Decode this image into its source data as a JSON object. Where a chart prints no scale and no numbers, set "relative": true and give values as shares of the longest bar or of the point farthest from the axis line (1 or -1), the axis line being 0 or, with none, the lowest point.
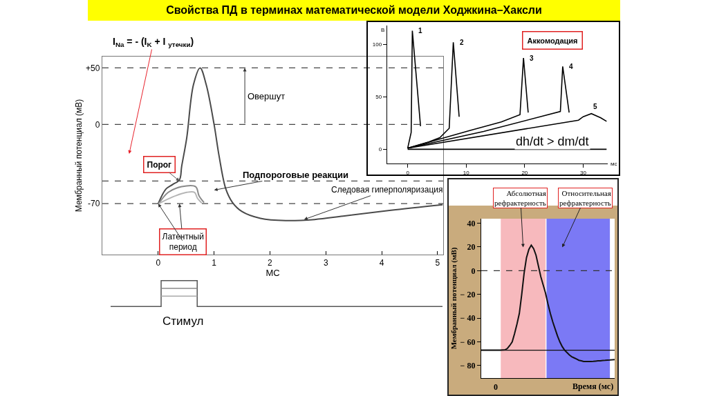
{
  "chart_data": [
    {
      "type": "line",
      "title": "Свойства ПД в терминах математической модели Ходжкина–Хаксли",
      "xlabel": "МС",
      "ylabel": "Мембранный потенциал (мВ)",
      "xlim": [
        -1,
        5.1
      ],
      "ylim": [
        -115,
        60
      ],
      "xticks": [
        0,
        1,
        2,
        3,
        4,
        5
      ],
      "yticks": [
        {
          "value": 50,
          "label": "+50"
        },
        0,
        -70
      ],
      "series": [
        {
          "color": "#4a4a4a",
          "x": [
            0,
            0.14,
            0.26,
            0.38,
            0.42,
            0.51,
            0.63,
            0.75,
            0.86,
            1.0,
            1.09,
            1.21,
            1.33,
            1.5,
            1.83,
            2.28,
            2.8,
            3.31,
            4.14,
            5.09
          ],
          "values": [
            -70,
            -57,
            -53,
            -49,
            -37,
            -12,
            35,
            50,
            35,
            0,
            -28,
            -57,
            -69,
            -77,
            -83,
            -85,
            -84,
            -81,
            -76,
            -71
          ]
        },
        {
          "color": "#8a8a8a",
          "x": [
            0.01,
            0.18,
            0.42,
            0.67,
            0.73,
            0.82
          ],
          "values": [
            -70,
            -60,
            -55,
            -55,
            -63,
            -69
          ]
        },
        {
          "color": "#b5b5b5",
          "x": [
            0.01,
            0.26,
            0.51,
            0.65,
            0.7,
            0.78
          ],
          "values": [
            -70,
            -64,
            -60,
            -60,
            -65,
            -69.5
          ]
        }
      ],
      "ref_lines": [
        {
          "axis": "y",
          "value": 50,
          "color": "#444444",
          "line_style": "dashed"
        },
        {
          "axis": "y",
          "value": 0,
          "color": "#444444",
          "line_style": "dashed"
        },
        {
          "axis": "y",
          "value": -50,
          "color": "#444444",
          "line_style": "dashed"
        },
        {
          "axis": "y",
          "value": -70,
          "color": "#444444",
          "line_style": "dashed"
        }
      ],
      "annotations": [
        "I$_{Na}$ = - (I$_{K}$ + I $_{утечки}$)",
        {
          "text": "Порог",
          "x": 0.38,
          "y": -50
        },
        "Овершут",
        "Подпороговые реакции",
        {
          "text": "Следовая гиперполяризация",
          "x": 2.61,
          "y": -84
        },
        {
          "text": "Латентный\nпериод",
          "x": 0.38,
          "y": -70
        }
      ]
    },
    {
      "type": "step",
      "relative": true,
      "xlabel": "Стимул",
      "categories": [
        null,
        null,
        null,
        null,
        null,
        null,
        null,
        null,
        null,
        null,
        null,
        null,
        null,
        null,
        null,
        null,
        null,
        null,
        null,
        null,
        null,
        null,
        null,
        null,
        null,
        null,
        null,
        null,
        null,
        null,
        null,
        null,
        null,
        null,
        null,
        null,
        null,
        null,
        null,
        null,
        null,
        null,
        null,
        null,
        null,
        null,
        null
      ],
      "series": [
        {
          "color": "#555555",
          "values": [
            0,
            0,
            0,
            0,
            0,
            0,
            0,
            1,
            1,
            1,
            1,
            1,
            0,
            0,
            0,
            0,
            0,
            0,
            0,
            0,
            0,
            0,
            0,
            0,
            0,
            0,
            0,
            0,
            0,
            0,
            0,
            0,
            0,
            0,
            0,
            0,
            0,
            0,
            0,
            0,
            0,
            0,
            0,
            0,
            0,
            0,
            0
          ]
        },
        {
          "color": "#888888",
          "values": [
            null,
            null,
            null,
            null,
            null,
            null,
            null,
            0.7,
            0.7,
            0.7,
            0.7,
            0.7,
            0.7,
            null,
            null,
            null,
            null,
            null,
            null,
            null,
            null,
            null,
            null,
            null,
            null,
            null,
            null,
            null,
            null,
            null,
            null,
            null,
            null,
            null,
            null,
            null,
            null,
            null,
            null,
            null,
            null,
            null,
            null,
            null,
            null,
            null,
            null
          ]
        },
        {
          "color": "#aaaaaa",
          "values": [
            null,
            null,
            null,
            null,
            null,
            null,
            null,
            0.4,
            0.4,
            0.4,
            0.4,
            0.4,
            0.4,
            null,
            null,
            null,
            null,
            null,
            null,
            null,
            null,
            null,
            null,
            null,
            null,
            null,
            null,
            null,
            null,
            null,
            null,
            null,
            null,
            null,
            null,
            null,
            null,
            null,
            null,
            null,
            null,
            null,
            null,
            null,
            null,
            null,
            null
          ]
        }
      ]
    },
    {
      "type": "line",
      "xlabel": "мс",
      "ylabel": "В",
      "xlim": [
        -3.5,
        34.2
      ],
      "ylim": [
        -13.6,
        118
      ],
      "xticks": [
        0,
        10,
        20,
        30
      ],
      "yticks": [
        0,
        50,
        100
      ],
      "series": [
        {
          "color": "#000000",
          "x": [
            0,
            34
          ],
          "values": [
            0,
            0
          ]
        },
        {
          "color": "#000000",
          "x": [
            0,
            0.6,
            0.8,
            2.2
          ],
          "values": [
            1,
            16,
            113,
            22
          ]
        },
        {
          "color": "#000000",
          "x": [
            0,
            3.6,
            5.5,
            7.1,
            7.8,
            8.8
          ],
          "values": [
            1,
            7,
            11,
            20,
            102,
            31
          ]
        },
        {
          "color": "#000000",
          "x": [
            0,
            10.7,
            16,
            19.2,
            19.8,
            20.6
          ],
          "values": [
            1,
            18,
            26,
            33,
            87,
            35
          ]
        },
        {
          "color": "#000000",
          "x": [
            0,
            13,
            26.1,
            26.5,
            27.6
          ],
          "values": [
            1,
            17,
            36,
            79,
            35
          ]
        },
        {
          "color": "#000000",
          "x": [
            0,
            29.2,
            30,
            31.4,
            33,
            34
          ],
          "values": [
            1,
            27.7,
            31,
            34,
            30,
            26.6
          ]
        }
      ],
      "annotations": [
        "Аккомодация",
        "dh/dt > dm/dt",
        {
          "text": "1",
          "x": 0.8,
          "y": 113
        },
        {
          "text": "2",
          "x": 7.8,
          "y": 102
        },
        {
          "text": "3",
          "x": 19.8,
          "y": 87
        },
        {
          "text": "4",
          "x": 26.5,
          "y": 79
        },
        {
          "text": "5",
          "x": 31.4,
          "y": 34
        }
      ]
    },
    {
      "type": "line",
      "xlabel": "Время (мс)",
      "ylabel": "Мембранный потенциал (мВ)",
      "categories": [
        null,
        null,
        null,
        null,
        null,
        null,
        null,
        null,
        null,
        null,
        null,
        null,
        null,
        null,
        null,
        null,
        null,
        null,
        null,
        null,
        null,
        null,
        null,
        null,
        null,
        null,
        null,
        null,
        null,
        null,
        null,
        null,
        null,
        null,
        null,
        null,
        null,
        null,
        null,
        null,
        null,
        null,
        null,
        null,
        null,
        null,
        null,
        null,
        null,
        null,
        null,
        null,
        null,
        null,
        null,
        null,
        null
      ],
      "annotations": [
        "0",
        "Абсолютная\nрефрактерность",
        "Относительная\nрефрактерность"
      ],
      "ylim": [
        -90.5,
        43.8
      ],
      "yticks": [
        40,
        20,
        0,
        {
          "value": -20,
          "label": "− 20"
        },
        {
          "value": -40,
          "label": "− 40"
        },
        {
          "value": -60,
          "label": "− 60"
        },
        {
          "value": -80,
          "label": "− 80"
        }
      ],
      "series": [
        {
          "color": "#111111",
          "values": [
            -67,
            -67,
            -67,
            -67,
            -67,
            -67,
            -67,
            -67,
            -66.9,
            -66.8,
            -66.7,
            -65.5,
            -63,
            -60,
            -53,
            -45,
            -36,
            -20,
            -2,
            11,
            18,
            21.5,
            18.5,
            13,
            4,
            -5,
            -12,
            -19,
            -28,
            -36,
            -43,
            -49,
            -55,
            -60,
            -64,
            -67,
            -69,
            -71,
            -72.5,
            -73.5,
            -74.5,
            -75.5,
            -76,
            -76.5,
            -76.6,
            -76.6,
            -76.5,
            -76.4,
            -76.2,
            -76,
            -75.9,
            -75.7,
            -75.6,
            -75.4,
            -75.3,
            -75.1,
            -75
          ]
        }
      ],
      "ref_lines": [
        {
          "axis": "y",
          "value": 0,
          "color": "#333333",
          "line_style": "dashed"
        },
        {
          "axis": "y",
          "value": -67,
          "color": "#111111",
          "line_style": "solid"
        }
      ]
    }
  ]
}
